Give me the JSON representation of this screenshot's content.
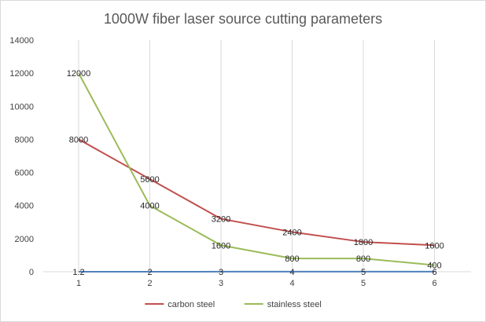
{
  "chart_data": {
    "type": "line",
    "title": "1000W fiber laser source cutting parameters",
    "xlabel": "",
    "ylabel": "",
    "ylim": [
      0,
      14000
    ],
    "yticks": [
      0,
      2000,
      4000,
      6000,
      8000,
      10000,
      12000,
      14000
    ],
    "categories": [
      "1",
      "2",
      "3",
      "4",
      "5",
      "6"
    ],
    "grid": "vertical lines at categories",
    "legend_position": "bottom",
    "series": [
      {
        "name": "carbon steel",
        "color": "#c0504d",
        "values": [
          8000,
          5600,
          3200,
          2400,
          1800,
          1600
        ],
        "labels": [
          "8000",
          "5600",
          "3200",
          "2400",
          "1800",
          "1600"
        ]
      },
      {
        "name": "stainless steel",
        "color": "#9bbb59",
        "values": [
          12000,
          4000,
          1600,
          800,
          800,
          400
        ],
        "labels": [
          "12000",
          "4000",
          "1600",
          "800",
          "800",
          "400"
        ]
      },
      {
        "name": "",
        "color": "#4f81bd",
        "values": [
          1.2,
          2,
          3,
          4,
          5,
          6
        ],
        "labels": [
          "1.2",
          "2",
          "3",
          "4",
          "5",
          "6"
        ]
      }
    ]
  }
}
